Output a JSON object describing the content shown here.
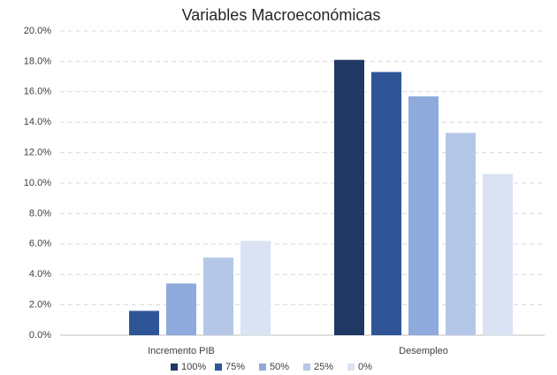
{
  "chart_data": {
    "type": "bar",
    "title": "Variables Macroeconómicas",
    "categories": [
      "Incremento PIB",
      "Desempleo"
    ],
    "series": [
      {
        "name": "100%",
        "color": "#1f3864",
        "values": [
          0,
          18.1
        ]
      },
      {
        "name": "75%",
        "color": "#2f5597",
        "values": [
          1.6,
          17.3
        ]
      },
      {
        "name": "50%",
        "color": "#8faadc",
        "values": [
          3.4,
          15.7
        ]
      },
      {
        "name": "25%",
        "color": "#b4c7e7",
        "values": [
          5.1,
          13.3
        ]
      },
      {
        "name": "0%",
        "color": "#dae3f3",
        "values": [
          6.2,
          10.6
        ]
      }
    ],
    "ylim": [
      0,
      20
    ],
    "yticks": [
      {
        "value": 0,
        "label": "0.0%"
      },
      {
        "value": 2,
        "label": "2.0%"
      },
      {
        "value": 4,
        "label": "4.0%"
      },
      {
        "value": 6,
        "label": "6.0%"
      },
      {
        "value": 8,
        "label": "8.0%"
      },
      {
        "value": 10,
        "label": "10.0%"
      },
      {
        "value": 12,
        "label": "12.0%"
      },
      {
        "value": 14,
        "label": "14.0%"
      },
      {
        "value": 16,
        "label": "16.0%"
      },
      {
        "value": 18,
        "label": "18.0%"
      },
      {
        "value": 20,
        "label": "20.0%"
      }
    ],
    "grid": true,
    "legend": "bottom"
  }
}
